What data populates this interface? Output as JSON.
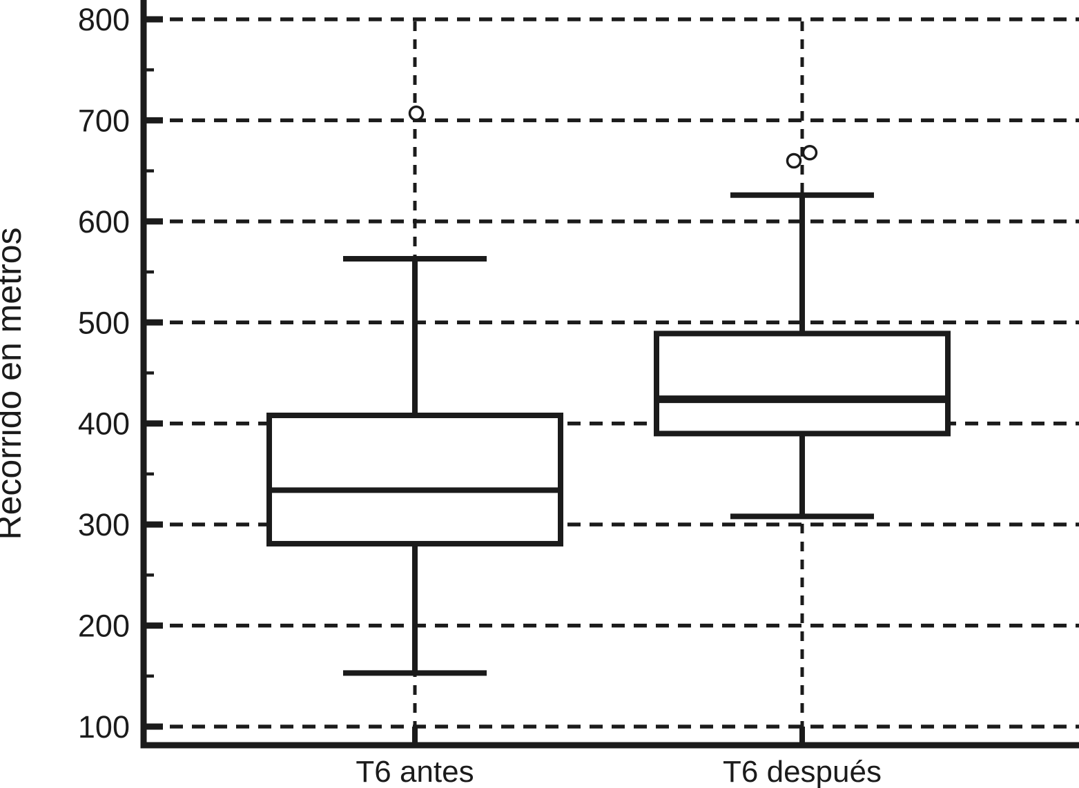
{
  "figure": {
    "background_color": "#ffffff",
    "ink_color": "#1b1b1b"
  },
  "chart_data": {
    "type": "boxplot",
    "orientation": "vertical",
    "title": "",
    "xlabel": "",
    "ylabel": "Recorrido en metros",
    "categories": [
      "T6 antes",
      "T6 después"
    ],
    "series": [
      {
        "name": "T6 antes",
        "whisker_low": 153,
        "q1": 281,
        "median": 334,
        "q3": 408,
        "whisker_high": 563,
        "outliers": [
          707
        ],
        "outlier_dx": [
          2
        ],
        "median_weight": "normal"
      },
      {
        "name": "T6 después",
        "whisker_low": 308,
        "q1": 390,
        "median": 424,
        "q3": 489,
        "whisker_high": 626,
        "outliers": [
          660,
          668
        ],
        "outlier_dx": [
          -12,
          11
        ],
        "median_weight": "bold"
      }
    ],
    "y_axis": {
      "label": "Recorrido en metros",
      "major_ticks": [
        100,
        200,
        300,
        400,
        500,
        600,
        700,
        800
      ],
      "minor_ticks": [
        150,
        250,
        350,
        450,
        550,
        650,
        750
      ],
      "range_shown": [
        82,
        819
      ]
    },
    "grid": {
      "style": "dashed",
      "horizontal": "dashed line at each major tick",
      "vertical": "dashed line at each category center"
    },
    "legend": "none"
  }
}
